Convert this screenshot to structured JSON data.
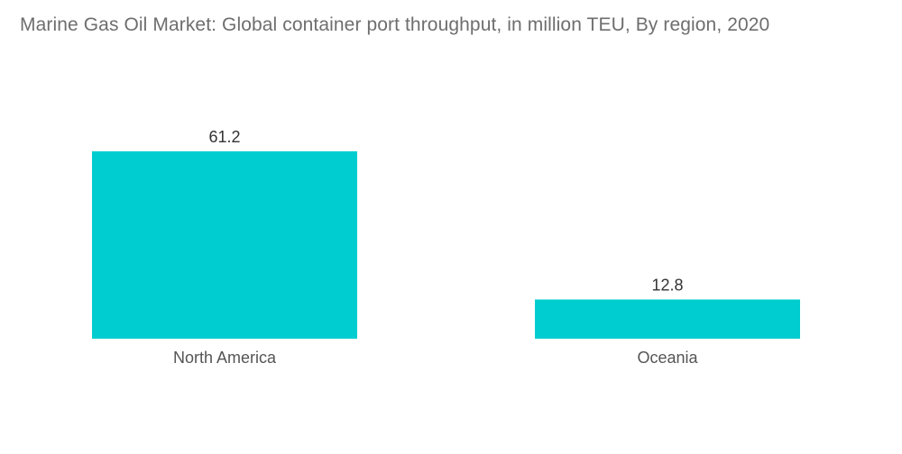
{
  "chart_data": {
    "type": "bar",
    "title": "Marine Gas Oil Market: Global container port throughput, in million TEU, By region, 2020",
    "categories": [
      "North America",
      "Oceania"
    ],
    "values": [
      61.2,
      12.8
    ],
    "xlabel": "",
    "ylabel": "",
    "ylim": [
      0,
      61.2
    ],
    "grid": false,
    "legend": "none",
    "bar_color": "#00CDD0",
    "data_labels": [
      "61.2",
      "12.8"
    ]
  }
}
